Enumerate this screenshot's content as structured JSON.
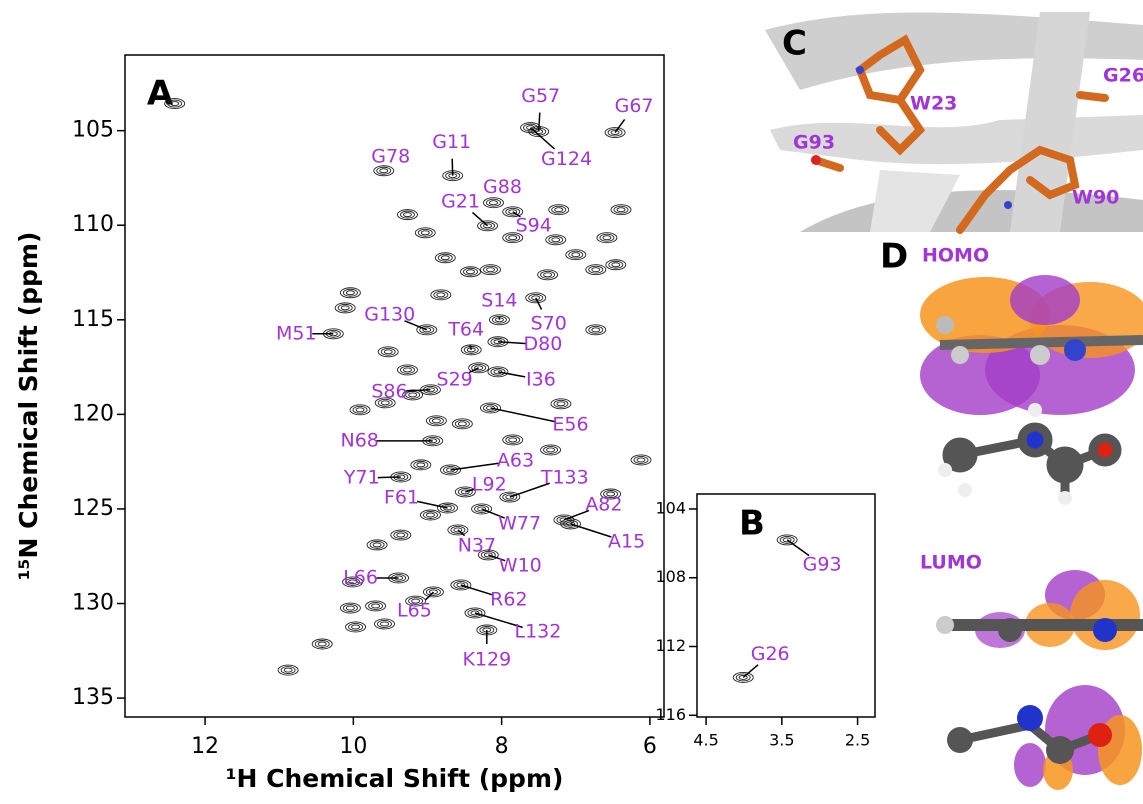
{
  "chart_data": [
    {
      "type": "nmr",
      "panel": "A",
      "x_label": "¹H Chemical Shift (ppm)",
      "y_label": "¹⁵N Chemical Shift (ppm)",
      "xlim": [
        13.08,
        5.81
      ],
      "ylim": [
        136,
        101
      ],
      "xticks": [
        12,
        10,
        8,
        6
      ],
      "yticks": [
        105,
        110,
        115,
        120,
        125,
        130,
        135
      ],
      "color": "#a035d8",
      "assignments": [
        {
          "label": "G57",
          "x": 7.5,
          "y": 105.05
        },
        {
          "label": "G67",
          "x": 6.47,
          "y": 105.1
        },
        {
          "label": "G124",
          "x": 7.61,
          "y": 104.84
        },
        {
          "label": "G78",
          "x": 9.59,
          "y": 107.12
        },
        {
          "label": "G11",
          "x": 8.66,
          "y": 107.38
        },
        {
          "label": "G88",
          "x": 8.11,
          "y": 108.81
        },
        {
          "label": "G21",
          "x": 8.19,
          "y": 110.03
        },
        {
          "label": "S94",
          "x": 7.85,
          "y": 109.29
        },
        {
          "label": "S14",
          "x": 8.03,
          "y": 115.0
        },
        {
          "label": "S70",
          "x": 7.54,
          "y": 113.84
        },
        {
          "label": "G130",
          "x": 9.01,
          "y": 115.53
        },
        {
          "label": "M51",
          "x": 10.27,
          "y": 115.74
        },
        {
          "label": "T64",
          "x": 8.41,
          "y": 116.59
        },
        {
          "label": "D80",
          "x": 8.05,
          "y": 116.16
        },
        {
          "label": "S29",
          "x": 8.31,
          "y": 117.54
        },
        {
          "label": "I36",
          "x": 8.05,
          "y": 117.75
        },
        {
          "label": "S86",
          "x": 8.96,
          "y": 118.7
        },
        {
          "label": "E56",
          "x": 8.15,
          "y": 119.66
        },
        {
          "label": "N68",
          "x": 8.93,
          "y": 121.4
        },
        {
          "label": "A63",
          "x": 8.69,
          "y": 122.94
        },
        {
          "label": "Y71",
          "x": 9.36,
          "y": 123.31
        },
        {
          "label": "L92",
          "x": 8.49,
          "y": 124.1
        },
        {
          "label": "T133",
          "x": 7.89,
          "y": 124.37
        },
        {
          "label": "F61",
          "x": 8.73,
          "y": 124.95
        },
        {
          "label": "A82",
          "x": 7.16,
          "y": 125.58
        },
        {
          "label": "W77",
          "x": 8.27,
          "y": 125.0
        },
        {
          "label": "A15",
          "x": 7.07,
          "y": 125.79
        },
        {
          "label": "N37",
          "x": 8.59,
          "y": 126.11
        },
        {
          "label": "W10",
          "x": 8.18,
          "y": 127.43
        },
        {
          "label": "L66",
          "x": 9.39,
          "y": 128.65
        },
        {
          "label": "R62",
          "x": 8.55,
          "y": 129.02
        },
        {
          "label": "L65",
          "x": 8.92,
          "y": 129.39
        },
        {
          "label": "L132",
          "x": 8.36,
          "y": 130.5
        },
        {
          "label": "K129",
          "x": 8.2,
          "y": 131.4
        }
      ],
      "peaks": {
        "x": [
          12.41,
          10.88,
          10.42,
          10.01,
          9.68,
          10.04,
          9.7,
          9.97,
          9.58,
          9.16,
          9.91,
          9.57,
          8.88,
          7.2,
          6.73,
          6.46,
          6.39,
          7.23,
          6.58,
          8.76,
          8.42,
          8.82,
          8.15,
          10.04,
          10.11,
          9.53,
          9.27,
          9.2,
          7.85,
          7.34,
          6.53,
          6.12,
          7.38,
          7.0,
          7.85,
          9.03,
          9.27,
          8.96,
          9.36,
          9.09,
          8.53,
          6.73,
          7.27
        ],
        "y": [
          103.57,
          133.52,
          132.14,
          128.86,
          126.9,
          130.24,
          130.13,
          131.24,
          131.08,
          129.87,
          119.76,
          119.39,
          120.34,
          119.44,
          115.53,
          112.09,
          109.18,
          109.18,
          110.66,
          111.72,
          112.46,
          113.68,
          112.35,
          113.57,
          114.37,
          116.69,
          117.65,
          118.97,
          121.35,
          121.88,
          124.21,
          122.41,
          112.62,
          111.56,
          110.66,
          110.4,
          109.44,
          125.32,
          126.38,
          122.67,
          120.5,
          112.35,
          110.77
        ]
      }
    },
    {
      "type": "nmr",
      "panel": "B",
      "xlim": [
        4.62,
        2.27
      ],
      "ylim": [
        116.1,
        103.13
      ],
      "xticks": [
        4.5,
        3.5,
        2.5
      ],
      "yticks": [
        104,
        108,
        112,
        116
      ],
      "color": "#a035d8",
      "assignments": [
        {
          "label": "G93",
          "x": 3.43,
          "y": 105.8
        },
        {
          "label": "G26",
          "x": 4.01,
          "y": 113.8
        }
      ]
    }
  ],
  "panel_c": {
    "letter": "C",
    "residues": [
      "W23",
      "G26",
      "G93",
      "W90"
    ]
  },
  "panel_d": {
    "letter": "D",
    "homo": "HOMO",
    "lumo": "LUMO"
  }
}
